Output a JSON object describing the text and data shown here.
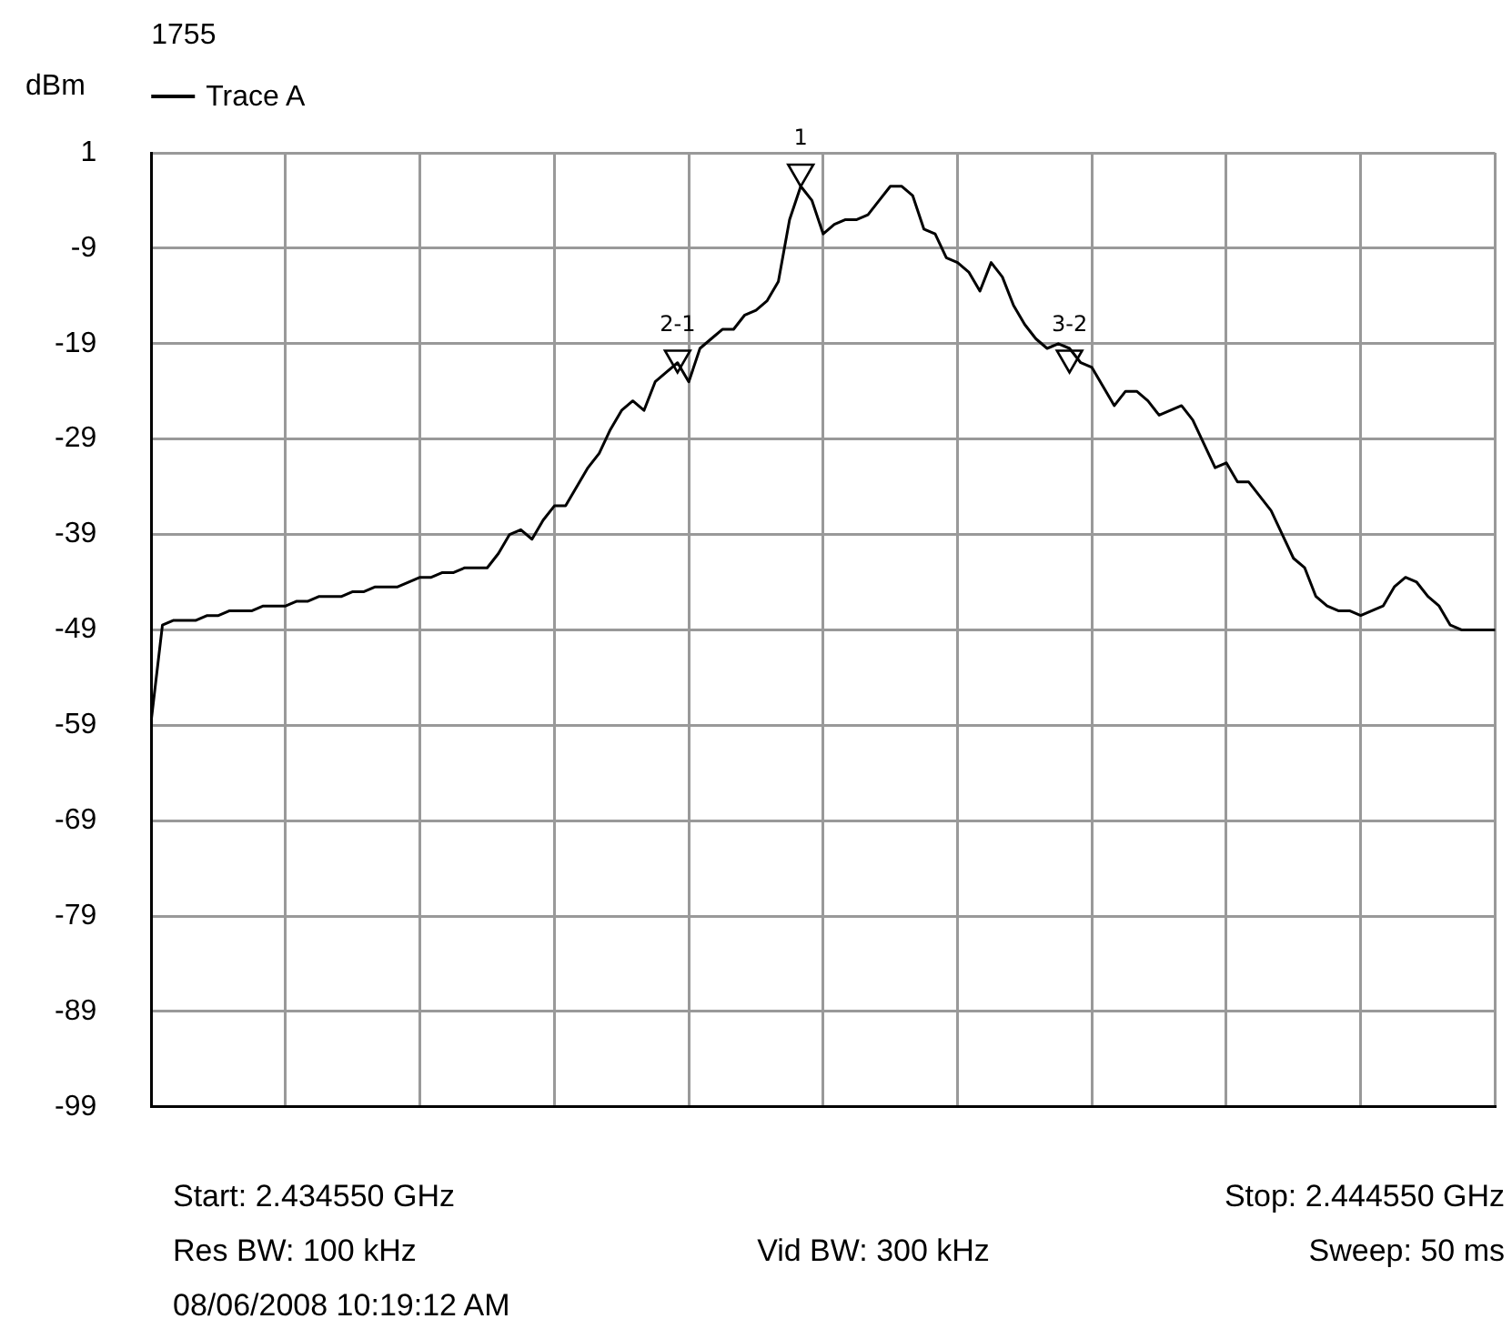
{
  "chart_data": {
    "type": "line",
    "title": "1755",
    "ylabel": "dBm",
    "legend": "top left",
    "grid": true,
    "marker": "none",
    "line_style": "solid",
    "tick_labels": "y",
    "categories": [
      null,
      null,
      null,
      null,
      null,
      null,
      null,
      null,
      null,
      null,
      null,
      null,
      null,
      null,
      null,
      null,
      null,
      null,
      null,
      null,
      null,
      null,
      null,
      null,
      null,
      null,
      null,
      null,
      null,
      null,
      null,
      null,
      null,
      null,
      null,
      null,
      null,
      null,
      null,
      null,
      null,
      null,
      null,
      null,
      null,
      null,
      null,
      null,
      null,
      null,
      null,
      null,
      null,
      null,
      null,
      null,
      null,
      null,
      null,
      null,
      null,
      null,
      null,
      null,
      null,
      null,
      null,
      null,
      null,
      null,
      null,
      null,
      null,
      null,
      null,
      null,
      null,
      null,
      null,
      null,
      null,
      null,
      null,
      null,
      null,
      null,
      null,
      null,
      null,
      null,
      null,
      null,
      null,
      null,
      null,
      null,
      null,
      null,
      null,
      null,
      null,
      null,
      null,
      null,
      null,
      null,
      null,
      null,
      null,
      null,
      null,
      null,
      null,
      null,
      null,
      null,
      null,
      null,
      null,
      null,
      null
    ],
    "ylim": [
      -99,
      1
    ],
    "yticks": [
      1,
      -9,
      -19,
      -29,
      -39,
      -49,
      -59,
      -69,
      -79,
      -89,
      -99
    ],
    "series": [
      {
        "name": "Trace A",
        "color": "#000000",
        "values": [
          -58.5,
          -48.5,
          -48,
          -48,
          -48,
          -47.5,
          -47.5,
          -47,
          -47,
          -47,
          -46.5,
          -46.5,
          -46.5,
          -46,
          -46,
          -45.5,
          -45.5,
          -45.5,
          -45,
          -45,
          -44.5,
          -44.5,
          -44.5,
          -44,
          -43.5,
          -43.5,
          -43,
          -43,
          -42.5,
          -42.5,
          -42.5,
          -41,
          -39,
          -38.5,
          -39.5,
          -37.5,
          -36,
          -36,
          -34,
          -32,
          -30.5,
          -28,
          -26,
          -25,
          -26,
          -23,
          -22,
          -21,
          -23,
          -19.5,
          -18.5,
          -17.5,
          -17.5,
          -16,
          -15.5,
          -14.5,
          -12.5,
          -6,
          -2.5,
          -4,
          -7.5,
          -6.5,
          -6,
          -6,
          -5.5,
          -4,
          -2.5,
          -2.5,
          -3.5,
          -7,
          -7.5,
          -10,
          -10.5,
          -11.5,
          -13.5,
          -10.5,
          -12,
          -15,
          -17,
          -18.5,
          -19.5,
          -19,
          -19.5,
          -21,
          -21.5,
          -23.5,
          -25.5,
          -24,
          -24,
          -25,
          -26.5,
          -26,
          -25.5,
          -27,
          -29.5,
          -32,
          -31.5,
          -33.5,
          -33.5,
          -35,
          -36.5,
          -39,
          -41.5,
          -42.5,
          -45.5,
          -46.5,
          -47,
          -47,
          -47.5,
          -47,
          -46.5,
          -44.5,
          -43.5,
          -44,
          -45.5,
          -46.5,
          -48.5,
          -49,
          -49,
          -49,
          -49
        ]
      },
      {
        "name": "1",
        "type": "scatter",
        "marker": "triangle",
        "color": "#000000",
        "values": [
          null,
          null,
          null,
          null,
          null,
          null,
          null,
          null,
          null,
          null,
          null,
          null,
          null,
          null,
          null,
          null,
          null,
          null,
          null,
          null,
          null,
          null,
          null,
          null,
          null,
          null,
          null,
          null,
          null,
          null,
          null,
          null,
          null,
          null,
          null,
          null,
          null,
          null,
          null,
          null,
          null,
          null,
          null,
          null,
          null,
          null,
          null,
          null,
          null,
          null,
          null,
          null,
          null,
          null,
          null,
          null,
          null,
          null,
          -1,
          null,
          null,
          null,
          null,
          null,
          null,
          null,
          null,
          null,
          null,
          null,
          null,
          null,
          null,
          null,
          null,
          null,
          null,
          null,
          null,
          null,
          null,
          null,
          null,
          null,
          null,
          null,
          null,
          null,
          null,
          null,
          null,
          null,
          null,
          null,
          null,
          null,
          null,
          null,
          null,
          null,
          null,
          null,
          null,
          null,
          null,
          null,
          null,
          null,
          null,
          null,
          null,
          null,
          null,
          null,
          null,
          null,
          null,
          null,
          null,
          null,
          null
        ]
      },
      {
        "name": "2-1",
        "type": "scatter",
        "marker": "triangle",
        "color": "#000000",
        "values": [
          null,
          null,
          null,
          null,
          null,
          null,
          null,
          null,
          null,
          null,
          null,
          null,
          null,
          null,
          null,
          null,
          null,
          null,
          null,
          null,
          null,
          null,
          null,
          null,
          null,
          null,
          null,
          null,
          null,
          null,
          null,
          null,
          null,
          null,
          null,
          null,
          null,
          null,
          null,
          null,
          null,
          null,
          null,
          null,
          null,
          null,
          null,
          -20.5,
          null,
          null,
          null,
          null,
          null,
          null,
          null,
          null,
          null,
          null,
          null,
          null,
          null,
          null,
          null,
          null,
          null,
          null,
          null,
          null,
          null,
          null,
          null,
          null,
          null,
          null,
          null,
          null,
          null,
          null,
          null,
          null,
          null,
          null,
          null,
          null,
          null,
          null,
          null,
          null,
          null,
          null,
          null,
          null,
          null,
          null,
          null,
          null,
          null,
          null,
          null,
          null,
          null,
          null,
          null,
          null,
          null,
          null,
          null,
          null,
          null,
          null,
          null,
          null,
          null,
          null,
          null,
          null,
          null,
          null,
          null,
          null,
          null
        ]
      },
      {
        "name": "3-2",
        "type": "scatter",
        "marker": "triangle",
        "color": "#000000",
        "values": [
          null,
          null,
          null,
          null,
          null,
          null,
          null,
          null,
          null,
          null,
          null,
          null,
          null,
          null,
          null,
          null,
          null,
          null,
          null,
          null,
          null,
          null,
          null,
          null,
          null,
          null,
          null,
          null,
          null,
          null,
          null,
          null,
          null,
          null,
          null,
          null,
          null,
          null,
          null,
          null,
          null,
          null,
          null,
          null,
          null,
          null,
          null,
          null,
          null,
          null,
          null,
          null,
          null,
          null,
          null,
          null,
          null,
          null,
          null,
          null,
          null,
          null,
          null,
          null,
          null,
          null,
          null,
          null,
          null,
          null,
          null,
          null,
          null,
          null,
          null,
          null,
          null,
          null,
          null,
          null,
          null,
          null,
          -20.5,
          null,
          null,
          null,
          null,
          null,
          null,
          null,
          null,
          null,
          null,
          null,
          null,
          null,
          null,
          null,
          null,
          null,
          null,
          null,
          null,
          null,
          null,
          null,
          null,
          null,
          null,
          null,
          null,
          null,
          null,
          null,
          null,
          null,
          null,
          null,
          null,
          null,
          null
        ]
      }
    ],
    "annotations": [
      "Start: 2.434550 GHz",
      "Stop: 2.444550 GHz",
      "Res BW: 100 kHz",
      "Vid BW: 300 kHz",
      "Sweep: 50 ms",
      "08/06/2008 10:19:12 AM"
    ]
  }
}
